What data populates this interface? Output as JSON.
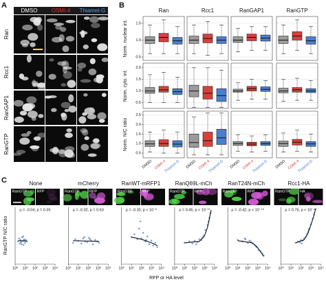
{
  "panel_a": {
    "label": "A",
    "conditions": [
      "DMSO",
      "OSMI-4",
      "Thiamet-G"
    ],
    "condition_colors": [
      "#ffffff",
      "#e0352e",
      "#5aa0e8"
    ],
    "rows": [
      "Ran",
      "Rcc1",
      "RanGAP1",
      "RanGTP"
    ]
  },
  "panel_b": {
    "label": "B",
    "conditions": [
      {
        "name": "DMSO",
        "color": "#9b9b9b"
      },
      {
        "name": "OSMI-4",
        "color": "#d8403a"
      },
      {
        "name": "Thiamet-G",
        "color": "#4a7fcf"
      }
    ],
    "columns": [
      "Ran",
      "Rcc1",
      "RanGAP1",
      "RanGTP"
    ],
    "rows": [
      {
        "ylabel": "Norm. nuclear int.",
        "ylim": [
          0.4,
          1.7
        ],
        "yticks": [
          0.5,
          {
            "value": 1,
            "label": "1.0"
          },
          1.5
        ],
        "boxes": [
          [
            [
              0.6,
              0.9,
              1.0,
              1.1,
              1.45
            ],
            [
              0.6,
              0.95,
              1.08,
              1.2,
              1.6
            ],
            [
              0.6,
              0.88,
              0.98,
              1.08,
              1.4
            ]
          ],
          [
            [
              0.6,
              0.9,
              1.0,
              1.12,
              1.45
            ],
            [
              0.55,
              0.92,
              1.05,
              1.18,
              1.55
            ],
            [
              0.6,
              0.9,
              1.0,
              1.1,
              1.45
            ]
          ],
          [
            [
              0.65,
              0.93,
              1.0,
              1.1,
              1.35
            ],
            [
              0.7,
              0.98,
              1.08,
              1.18,
              1.4
            ],
            [
              0.7,
              0.97,
              1.06,
              1.15,
              1.4
            ]
          ],
          [
            [
              0.6,
              0.9,
              1.0,
              1.12,
              1.45
            ],
            [
              0.7,
              1.0,
              1.12,
              1.25,
              1.6
            ],
            [
              0.6,
              0.88,
              0.98,
              1.1,
              1.4
            ]
          ]
        ]
      },
      {
        "ylabel": "Norm. cyto. int.",
        "ylim": [
          0.25,
          2.2
        ],
        "yticks": [
          0.5,
          {
            "value": 1,
            "label": "1.0"
          },
          1.5,
          {
            "value": 2,
            "label": "2.0"
          }
        ],
        "boxes": [
          [
            [
              0.5,
              0.9,
              1.0,
              1.15,
              1.7
            ],
            [
              0.5,
              0.95,
              1.05,
              1.2,
              1.8
            ],
            [
              0.5,
              0.85,
              0.97,
              1.1,
              1.6
            ]
          ],
          [
            [
              0.3,
              0.75,
              1.0,
              1.25,
              2.0
            ],
            [
              0.3,
              0.65,
              0.9,
              1.2,
              2.0
            ],
            [
              0.3,
              0.55,
              0.8,
              1.1,
              1.9
            ]
          ],
          [
            [
              0.6,
              0.95,
              1.0,
              1.08,
              1.35
            ],
            [
              0.65,
              1.0,
              1.1,
              1.2,
              1.5
            ],
            [
              0.65,
              0.98,
              1.07,
              1.18,
              1.45
            ]
          ],
          [
            [
              0.55,
              0.92,
              1.0,
              1.12,
              1.5
            ],
            [
              0.6,
              0.95,
              1.05,
              1.15,
              1.55
            ],
            [
              0.6,
              0.93,
              1.0,
              1.1,
              1.45
            ]
          ]
        ]
      },
      {
        "ylabel": "Norm. N/C ratio",
        "ylim": [
          0.25,
          2.7
        ],
        "yticks": [
          0.5,
          {
            "value": 1,
            "label": "1.0"
          },
          1.5,
          {
            "value": 2,
            "label": "2.0"
          },
          2.5
        ],
        "boxes": [
          [
            [
              0.55,
              0.85,
              0.98,
              1.15,
              1.6
            ],
            [
              0.5,
              0.85,
              1.0,
              1.2,
              1.7
            ],
            [
              0.5,
              0.82,
              0.97,
              1.15,
              1.6
            ]
          ],
          [
            [
              0.4,
              0.8,
              1.05,
              1.5,
              2.4
            ],
            [
              0.4,
              0.85,
              1.15,
              1.6,
              2.6
            ],
            [
              0.4,
              0.95,
              1.3,
              1.75,
              2.6
            ]
          ],
          [
            [
              0.6,
              0.9,
              1.0,
              1.1,
              1.45
            ],
            [
              0.55,
              0.88,
              0.97,
              1.07,
              1.4
            ],
            [
              0.6,
              0.9,
              1.0,
              1.1,
              1.45
            ]
          ],
          [
            [
              0.55,
              0.85,
              1.0,
              1.13,
              1.55
            ],
            [
              0.6,
              0.92,
              1.07,
              1.22,
              1.7
            ],
            [
              0.55,
              0.85,
              0.98,
              1.1,
              1.5
            ]
          ]
        ]
      }
    ]
  },
  "panel_c": {
    "label": "C",
    "ylabel": "RanGTP N/C ratio",
    "xlabel": "RFP or HA level",
    "xscale": "log",
    "xlim": [
      1,
      10000
    ],
    "xticks": [
      {
        "value": 1,
        "label": "10⁰"
      },
      {
        "value": 10,
        "label": "10¹"
      },
      {
        "value": 100,
        "label": "10²"
      },
      {
        "value": 1000,
        "label": "10³"
      },
      {
        "value": 10000,
        "label": "10⁴"
      }
    ],
    "ylim": [
      0,
      8
    ],
    "point_color": "#5b8fd0",
    "fit_color": "#111111",
    "panels": [
      {
        "title": "None",
        "channels": [
          "RanGTP",
          "RFP"
        ],
        "annotation": "ρ = -0.04, p = 0.35",
        "x": [
          2,
          2.5,
          3,
          3.5,
          4,
          5,
          6,
          7,
          8,
          10,
          12,
          15,
          4.5,
          6.5,
          9
        ],
        "y": [
          3.2,
          3.6,
          2.9,
          3.4,
          3.1,
          3.8,
          3.3,
          2.7,
          3.5,
          3.0,
          3.4,
          3.2,
          2.8,
          3.9,
          3.3
        ],
        "fit_x": [
          2,
          15
        ],
        "fit_y": [
          3.3,
          3.25
        ]
      },
      {
        "title": "mCherry",
        "channels": [
          "RanGTP",
          "RFP"
        ],
        "annotation": "ρ = -0.02, p = 0.63",
        "x": [
          3,
          5,
          10,
          20,
          30,
          50,
          80,
          120,
          200,
          300,
          500,
          800,
          1200,
          40,
          150
        ],
        "y": [
          3.0,
          3.5,
          3.3,
          2.9,
          3.6,
          3.2,
          3.1,
          3.7,
          3.3,
          2.8,
          3.4,
          3.2,
          3.0,
          3.8,
          3.5
        ],
        "fit_x": [
          3,
          1200
        ],
        "fit_y": [
          3.3,
          3.2
        ]
      },
      {
        "title": "RanWT-mRFP1",
        "channels": [
          "RanGTP",
          "RFP"
        ],
        "annotation": "ρ = -0.30, p < 10⁻⁶",
        "x": [
          10,
          20,
          40,
          60,
          100,
          150,
          250,
          400,
          600,
          1000,
          1500,
          2500,
          4000,
          80,
          300
        ],
        "y": [
          3.8,
          4.2,
          3.5,
          5.0,
          3.6,
          4.4,
          3.2,
          3.9,
          2.8,
          3.3,
          2.6,
          3.0,
          2.4,
          6.0,
          3.4
        ],
        "fit_x": [
          10,
          100,
          1000,
          4000
        ],
        "fit_y": [
          3.8,
          3.5,
          3.0,
          2.6
        ]
      },
      {
        "title": "RanQ69L-mCh",
        "channels": [
          "RanGTP",
          "RFP"
        ],
        "annotation": "ρ = 0.45, p < 10⁻¹¹",
        "x": [
          10,
          30,
          60,
          100,
          200,
          300,
          500,
          800,
          1200,
          2000,
          3000,
          4000,
          150,
          700,
          2500
        ],
        "y": [
          3.0,
          3.2,
          2.9,
          3.3,
          3.1,
          3.5,
          3.4,
          4.0,
          4.8,
          5.5,
          6.5,
          7.2,
          2.8,
          3.7,
          6.0
        ],
        "fit_x": [
          10,
          300,
          1000,
          2000,
          3000,
          4500
        ],
        "fit_y": [
          3.0,
          3.2,
          4.0,
          5.2,
          6.3,
          7.6
        ]
      },
      {
        "title": "RanT24N-mCh",
        "channels": [
          "RanGTP",
          "RFP"
        ],
        "annotation": "ρ = -0.42, p < 10⁻¹⁹",
        "x": [
          10,
          30,
          60,
          100,
          200,
          300,
          500,
          800,
          1200,
          2000,
          3000,
          4000,
          150,
          700,
          50
        ],
        "y": [
          3.4,
          3.2,
          3.5,
          3.0,
          3.2,
          2.9,
          2.7,
          2.4,
          2.0,
          1.8,
          1.5,
          1.2,
          3.3,
          2.5,
          3.6
        ],
        "fit_x": [
          10,
          300,
          1000,
          2000,
          4000
        ],
        "fit_y": [
          3.3,
          3.0,
          2.3,
          1.7,
          1.1
        ]
      },
      {
        "title": "Rcc1-HA",
        "channels": [
          "RanGTP",
          "HA"
        ],
        "annotation": "ρ = 0.76, p < 10⁻⁴⁵",
        "x": [
          30,
          50,
          80,
          100,
          150,
          200,
          300,
          400,
          500,
          700,
          1000,
          1500,
          2000,
          120,
          600
        ],
        "y": [
          3.0,
          3.2,
          3.1,
          3.4,
          3.3,
          3.6,
          3.8,
          4.2,
          4.5,
          5.0,
          5.6,
          6.4,
          7.0,
          2.9,
          4.8
        ],
        "fit_x": [
          30,
          200,
          500,
          1000,
          2000,
          3000
        ],
        "fit_y": [
          3.0,
          3.4,
          4.3,
          5.5,
          6.8,
          7.8
        ]
      }
    ]
  }
}
